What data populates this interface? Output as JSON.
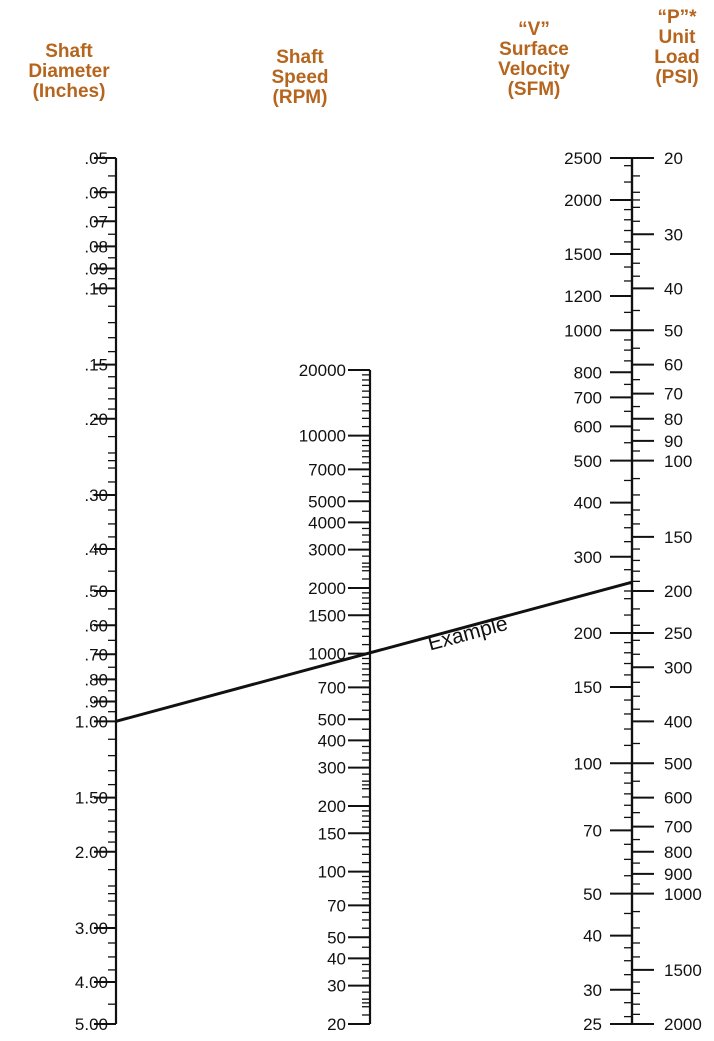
{
  "colors": {
    "heading": "#b5651d",
    "ink": "#111111",
    "background": "#ffffff"
  },
  "headers": {
    "diameter": [
      "Shaft",
      "Diameter",
      "(Inches)"
    ],
    "speed": [
      "Shaft",
      "Speed",
      "(RPM)"
    ],
    "velocity": [
      "“V”",
      "Surface",
      "Velocity",
      "(SFM)"
    ],
    "load": [
      "“P”*",
      "Unit",
      "Load",
      "(PSI)"
    ]
  },
  "scales": {
    "diameter": {
      "labels": [
        ".05",
        ".06",
        ".07",
        ".08",
        ".09",
        ".10",
        ".15",
        ".20",
        ".30",
        ".40",
        ".50",
        ".60",
        ".70",
        ".80",
        ".90",
        "1.00",
        "1.50",
        "2.00",
        "3.00",
        "4.00",
        "5.00"
      ],
      "values": [
        0.05,
        0.06,
        0.07,
        0.08,
        0.09,
        0.1,
        0.15,
        0.2,
        0.3,
        0.4,
        0.5,
        0.6,
        0.7,
        0.8,
        0.9,
        1.0,
        1.5,
        2.0,
        3.0,
        4.0,
        5.0
      ],
      "range": [
        0.05,
        5.0
      ]
    },
    "speed": {
      "labels": [
        "20000",
        "10000",
        "7000",
        "5000",
        "4000",
        "3000",
        "2000",
        "1500",
        "1000",
        "700",
        "500",
        "400",
        "300",
        "200",
        "150",
        "100",
        "70",
        "50",
        "40",
        "30",
        "20"
      ],
      "values": [
        20000,
        10000,
        7000,
        5000,
        4000,
        3000,
        2000,
        1500,
        1000,
        700,
        500,
        400,
        300,
        200,
        150,
        100,
        70,
        50,
        40,
        30,
        20
      ],
      "range": [
        20,
        20000
      ]
    },
    "velocity": {
      "labels": [
        "2500",
        "2000",
        "1500",
        "1200",
        "1000",
        "800",
        "700",
        "600",
        "500",
        "400",
        "300",
        "200",
        "150",
        "100",
        "70",
        "50",
        "40",
        "30",
        "25"
      ],
      "values": [
        2500,
        2000,
        1500,
        1200,
        1000,
        800,
        700,
        600,
        500,
        400,
        300,
        200,
        150,
        100,
        70,
        50,
        40,
        30,
        25
      ],
      "range": [
        25,
        2500
      ]
    },
    "load": {
      "labels": [
        "20",
        "30",
        "40",
        "50",
        "60",
        "70",
        "80",
        "90",
        "100",
        "150",
        "200",
        "250",
        "300",
        "400",
        "500",
        "600",
        "700",
        "800",
        "900",
        "1000",
        "1500",
        "2000"
      ],
      "values": [
        20,
        30,
        40,
        50,
        60,
        70,
        80,
        90,
        100,
        150,
        200,
        250,
        300,
        400,
        500,
        600,
        700,
        800,
        900,
        1000,
        1500,
        2000
      ],
      "range": [
        20,
        2000
      ]
    }
  },
  "example": {
    "label": "Example",
    "diameter": 1.0,
    "speed": 1000,
    "velocity": 262
  }
}
